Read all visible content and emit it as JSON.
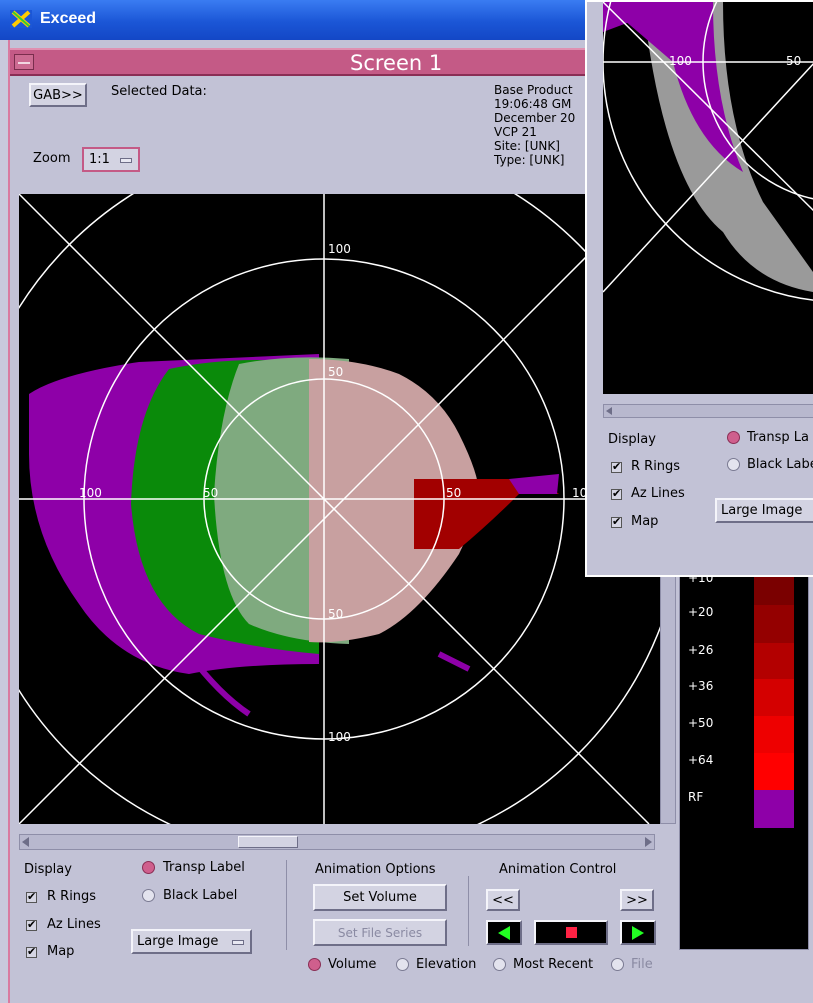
{
  "app": {
    "title": "Exceed"
  },
  "screen": {
    "title": "Screen 1"
  },
  "toolbar": {
    "gab_label": "GAB>>",
    "selected_data_label": "Selected Data:",
    "zoom_label": "Zoom",
    "zoom_value": "1:1"
  },
  "info": {
    "lines": [
      "Base Product",
      "19:06:48 GM",
      "December 20",
      "VCP 21",
      "Site: [UNK]",
      "Type: [UNK]"
    ]
  },
  "radar": {
    "ring_labels_top": [
      "100",
      "50"
    ],
    "ring_labels_left": [
      "100",
      "50"
    ],
    "ring_labels_right": [
      "50",
      "10"
    ],
    "ring_labels_bottom": [
      "50",
      "100"
    ]
  },
  "display": {
    "title": "Display",
    "checks": [
      {
        "label": "R Rings",
        "checked": true
      },
      {
        "label": "Az Lines",
        "checked": true
      },
      {
        "label": "Map",
        "checked": true
      }
    ],
    "radios": [
      {
        "label": "Transp Label",
        "selected": true
      },
      {
        "label": "Black Label",
        "selected": false
      }
    ],
    "image_size": "Large Image"
  },
  "animation_options": {
    "title": "Animation Options",
    "set_volume": "Set Volume",
    "set_file_series": "Set File Series",
    "modes": [
      {
        "label": "Volume",
        "selected": true
      },
      {
        "label": "Elevation",
        "selected": false
      },
      {
        "label": "Most Recent",
        "selected": false
      },
      {
        "label": "File",
        "selected": false
      }
    ]
  },
  "animation_control": {
    "title": "Animation Control",
    "back_label": "<<",
    "forward_label": ">>"
  },
  "win2": {
    "ring_labels": [
      "100",
      "50"
    ],
    "display_title": "Display",
    "checks": [
      "R Rings",
      "Az Lines",
      "Map"
    ],
    "radios": [
      "Transp La",
      "Black Labe"
    ],
    "image_size": "Large Image"
  },
  "colorbar": {
    "entries": [
      {
        "label": "+10",
        "color": "#7a0000"
      },
      {
        "label": "+20",
        "color": "#940000"
      },
      {
        "label": "+26",
        "color": "#b30000"
      },
      {
        "label": "+36",
        "color": "#d40000"
      },
      {
        "label": "+50",
        "color": "#ee0000"
      },
      {
        "label": "+64",
        "color": "#ff0000"
      },
      {
        "label": "RF",
        "color": "#8e00a8"
      }
    ]
  },
  "colors": {
    "title_blue": "#1b56d6",
    "pink_bar": "#c45a86",
    "purple": "#8e00a8",
    "green": "#0a8a0a"
  }
}
